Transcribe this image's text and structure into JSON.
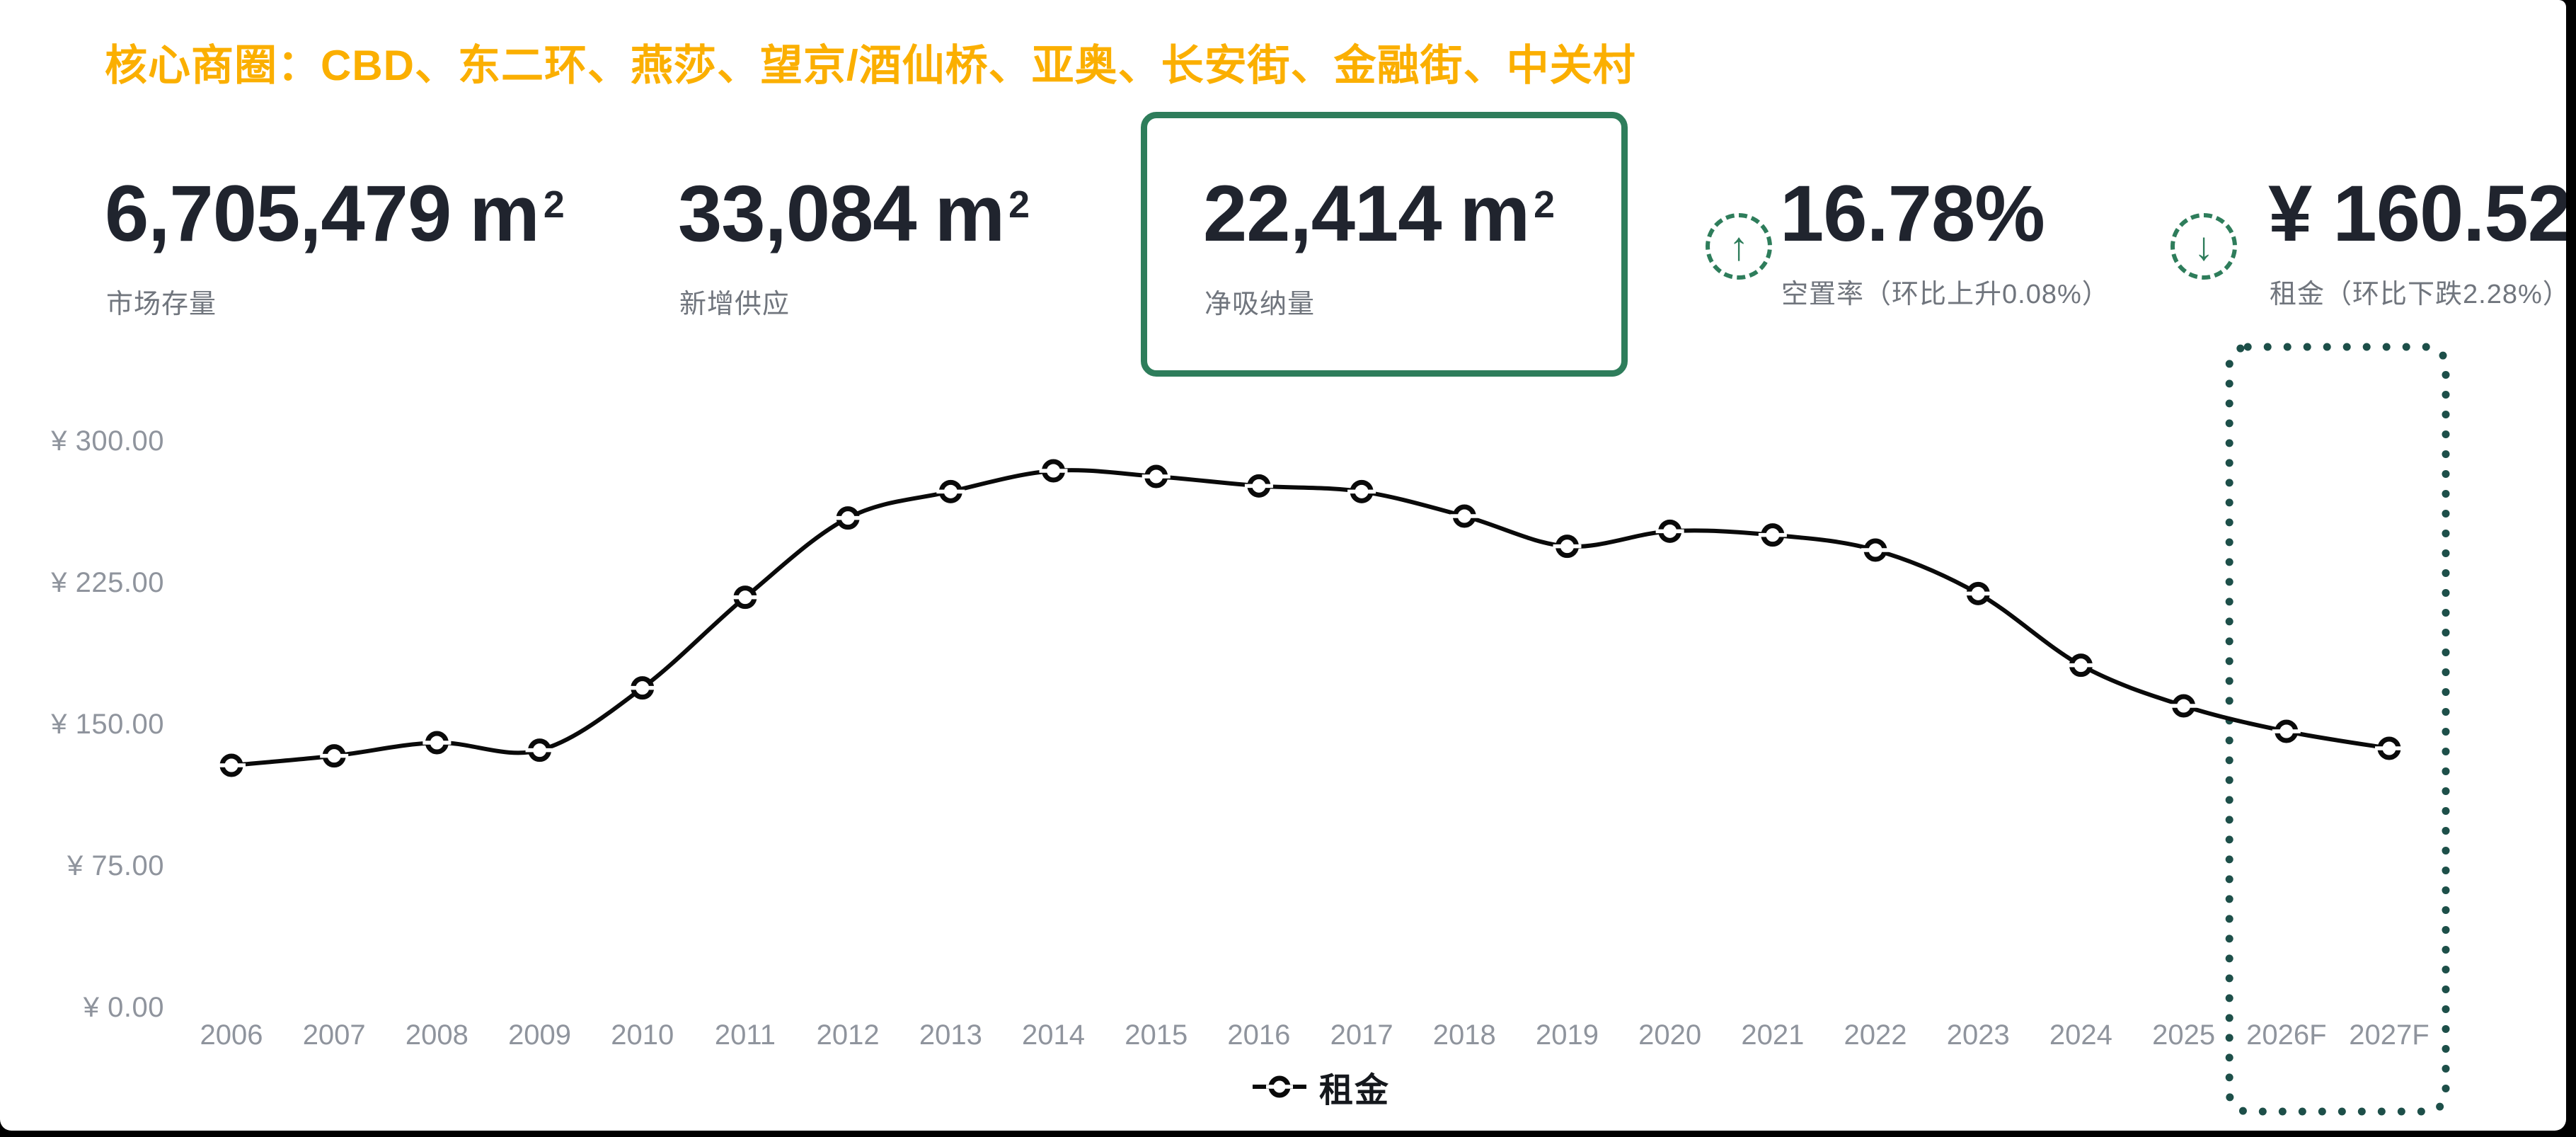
{
  "header": {
    "title": "核心商圈：CBD、东二环、燕莎、望京/酒仙桥、亚奥、长安街、金融街、中关村"
  },
  "stats": [
    {
      "value": "6,705,479",
      "unit_base": "m",
      "unit_sup": "2",
      "label": "市场存量"
    },
    {
      "value": "33,084",
      "unit_base": "m",
      "unit_sup": "2",
      "label": "新增供应"
    },
    {
      "value": "22,414",
      "unit_base": "m",
      "unit_sup": "2",
      "label": "净吸纳量",
      "highlighted": true
    },
    {
      "value": "16.78%",
      "label": "空置率（环比上升0.08%）",
      "trend": "up",
      "trend_arrow": "↑"
    },
    {
      "value": "¥ 160.52",
      "label": "租金（环比下跌2.28%）",
      "trend": "down",
      "trend_arrow": "↓"
    }
  ],
  "chart_data": {
    "type": "line",
    "title": "",
    "series_name": "租金",
    "x": [
      "2006",
      "2007",
      "2008",
      "2009",
      "2010",
      "2011",
      "2012",
      "2013",
      "2014",
      "2015",
      "2016",
      "2017",
      "2018",
      "2019",
      "2020",
      "2021",
      "2022",
      "2023",
      "2024",
      "2025",
      "2026F",
      "2027F"
    ],
    "values": [
      129,
      134,
      141,
      137,
      170,
      218,
      260,
      274,
      285,
      282,
      277,
      274,
      261,
      245,
      253,
      251,
      243,
      220,
      182,
      160.5,
      147,
      138
    ],
    "y_ticks": [
      {
        "label": "¥ 300.00",
        "value": 300
      },
      {
        "label": "¥ 225.00",
        "value": 225
      },
      {
        "label": "¥ 150.00",
        "value": 150
      },
      {
        "label": "¥ 75.00",
        "value": 75
      },
      {
        "label": "¥ 0.00",
        "value": 0
      }
    ],
    "ylim": [
      0,
      318
    ],
    "grid": false,
    "legend_position": "bottom",
    "marker": "empty-circle",
    "forecast_years": [
      "2026F",
      "2027F"
    ],
    "unit": "¥/m²"
  },
  "colors": {
    "headline_yellow": "#FBAF00",
    "text_dark": "#20242E",
    "label_gray": "#70757D",
    "axis_gray": "#8F949D",
    "accent_green": "#2E7D5B",
    "forecast_teal": "#1D4F49",
    "line_black": "#0A0A0A",
    "background": "#FFFFFF",
    "edge_black": "#000000"
  }
}
